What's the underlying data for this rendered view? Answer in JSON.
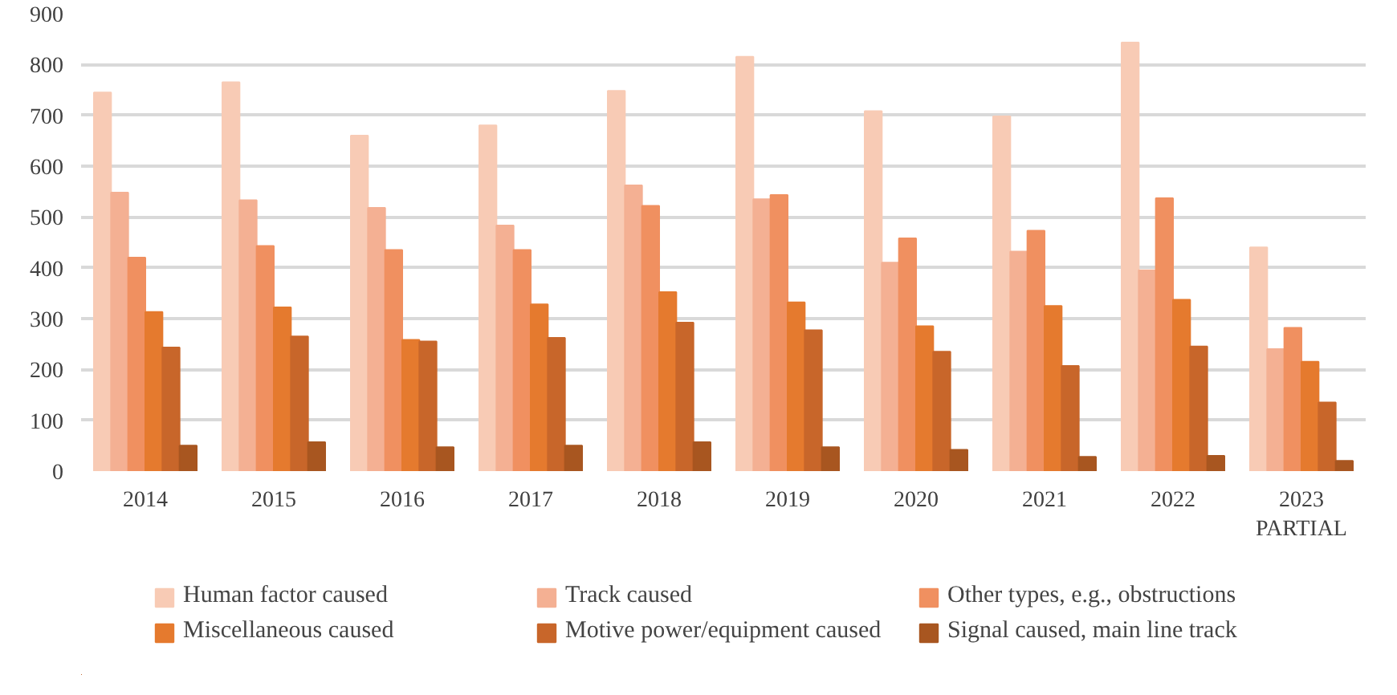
{
  "chart_data": {
    "type": "bar",
    "categories": [
      "2014",
      "2015",
      "2016",
      "2017",
      "2018",
      "2019",
      "2020",
      "2021",
      "2022",
      "2023\nPARTIAL"
    ],
    "series": [
      {
        "name": "Human factor caused",
        "color": "#f8cbb5",
        "values": [
          745,
          765,
          660,
          680,
          748,
          815,
          708,
          698,
          843,
          440
        ]
      },
      {
        "name": "Track caused",
        "color": "#f4b093",
        "values": [
          548,
          533,
          518,
          483,
          562,
          535,
          410,
          432,
          395,
          240
        ]
      },
      {
        "name": "Other types, e.g., obstructions",
        "color": "#f09060",
        "values": [
          420,
          443,
          435,
          435,
          522,
          543,
          458,
          473,
          537,
          282
        ]
      },
      {
        "name": "Miscellaneous caused",
        "color": "#e57a2e",
        "values": [
          313,
          322,
          258,
          328,
          352,
          332,
          285,
          325,
          337,
          215
        ]
      },
      {
        "name": "Motive power/equipment caused",
        "color": "#c8662a",
        "values": [
          243,
          265,
          255,
          262,
          292,
          277,
          235,
          207,
          245,
          135
        ]
      },
      {
        "name": "Signal caused, main line track",
        "color": "#a85620",
        "values": [
          50,
          57,
          47,
          50,
          57,
          47,
          42,
          28,
          30,
          20
        ]
      }
    ],
    "ylim": [
      0,
      900
    ],
    "yticks": [
      0,
      100,
      200,
      300,
      400,
      500,
      600,
      700,
      800,
      900
    ],
    "grid": "y",
    "legend": "bottom"
  }
}
